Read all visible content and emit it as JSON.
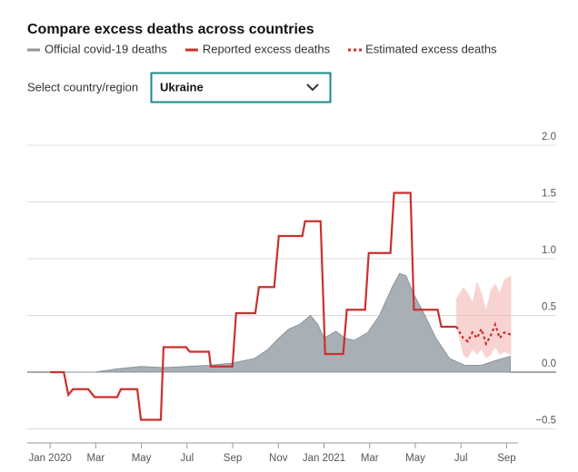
{
  "chart_data": {
    "type": "line",
    "title": "Compare excess deaths across countries",
    "xlim": [
      -1,
      20.5
    ],
    "xticks": [
      {
        "value": 0,
        "label": "Jan 2020"
      },
      {
        "value": 2,
        "label": "Mar"
      },
      {
        "value": 4,
        "label": "May"
      },
      {
        "value": 6,
        "label": "Jul"
      },
      {
        "value": 8,
        "label": "Sep"
      },
      {
        "value": 10,
        "label": "Nov"
      },
      {
        "value": 12,
        "label": "Jan 2021"
      },
      {
        "value": 14,
        "label": "Mar"
      },
      {
        "value": 16,
        "label": "May"
      },
      {
        "value": 18,
        "label": "Jul"
      },
      {
        "value": 20,
        "label": "Sep"
      }
    ],
    "ylim": [
      -0.6,
      2.0
    ],
    "yticks": [
      {
        "value": 2,
        "label": "2.0"
      },
      1.5,
      {
        "value": 1,
        "label": "1.0"
      },
      0.5,
      {
        "value": 0,
        "label": "0.0"
      },
      {
        "value": -0.5,
        "label": "−0.5"
      }
    ],
    "grid": true,
    "series": [
      {
        "name": "Official covid-19 deaths",
        "style": "area",
        "color": "#a9b0b5",
        "x": [
          0,
          1.95,
          2.98,
          3.98,
          4.97,
          5.96,
          6.96,
          7.99,
          8.95,
          9.54,
          10.02,
          10.46,
          10.93,
          11.41,
          11.73,
          12.0,
          12.52,
          12.92,
          13.32,
          13.92,
          14.43,
          14.99,
          15.31,
          15.59,
          15.9,
          16.42,
          16.9,
          17.5,
          18.17,
          18.89,
          19.48,
          20.16
        ],
        "values": [
          0,
          0,
          0.03,
          0.05,
          0.04,
          0.05,
          0.06,
          0.08,
          0.12,
          0.2,
          0.3,
          0.38,
          0.42,
          0.5,
          0.42,
          0.3,
          0.36,
          0.3,
          0.28,
          0.35,
          0.5,
          0.75,
          0.87,
          0.85,
          0.7,
          0.5,
          0.3,
          0.12,
          0.06,
          0.06,
          0.1,
          0.14
        ]
      },
      {
        "name": "Reported excess deaths",
        "style": "line",
        "color": "#c8312f",
        "x": [
          0,
          0.6,
          0.8,
          1.0,
          1.67,
          1.95,
          2.94,
          3.1,
          3.82,
          3.98,
          4.85,
          4.97,
          5.96,
          6.12,
          6.96,
          7.04,
          7.99,
          8.15,
          8.99,
          9.15,
          9.82,
          10.02,
          11.05,
          11.17,
          11.85,
          12.05,
          12.84,
          13.0,
          13.8,
          13.96,
          14.91,
          15.07,
          15.79,
          15.94,
          16.98,
          17.14,
          17.81
        ],
        "values": [
          0,
          0,
          -0.2,
          -0.15,
          -0.15,
          -0.22,
          -0.22,
          -0.15,
          -0.15,
          -0.42,
          -0.42,
          0.22,
          0.22,
          0.18,
          0.18,
          0.05,
          0.05,
          0.52,
          0.52,
          0.75,
          0.75,
          1.2,
          1.2,
          1.33,
          1.33,
          0.16,
          0.16,
          0.55,
          0.55,
          1.05,
          1.05,
          1.58,
          1.58,
          0.55,
          0.55,
          0.4,
          0.4
        ]
      },
      {
        "name": "Estimated excess deaths",
        "style": "dotted",
        "color": "#c8312f",
        "x": [
          17.8,
          18.1,
          18.3,
          18.5,
          18.7,
          18.9,
          19.1,
          19.3,
          19.5,
          19.7,
          19.9,
          20.2
        ],
        "values": [
          0.4,
          0.3,
          0.27,
          0.35,
          0.3,
          0.38,
          0.25,
          0.32,
          0.42,
          0.3,
          0.35,
          0.33
        ],
        "lower": [
          0.4,
          0.15,
          0.12,
          0.2,
          0.15,
          0.2,
          0.12,
          0.15,
          0.22,
          0.15,
          0.18,
          0.15
        ],
        "upper": [
          0.65,
          0.75,
          0.7,
          0.62,
          0.8,
          0.7,
          0.55,
          0.72,
          0.78,
          0.7,
          0.82,
          0.85
        ]
      }
    ]
  },
  "controls": {
    "label": "Select country/region",
    "selected": "Ukraine"
  }
}
